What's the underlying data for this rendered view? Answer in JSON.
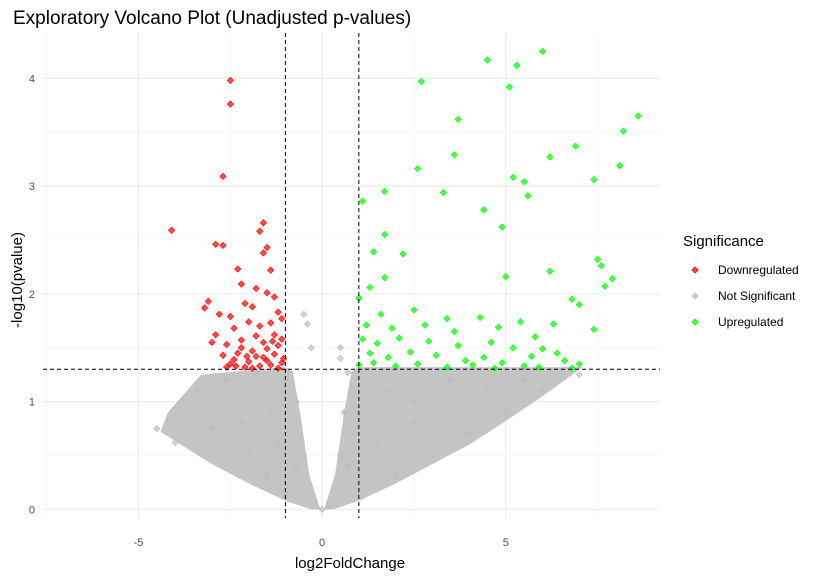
{
  "chart_data": {
    "type": "scatter",
    "title": "Exploratory Volcano Plot (Unadjusted p-values)",
    "xlabel": "log2FoldChange",
    "ylabel": "-log10(pvalue)",
    "xlim": [
      -7.6,
      9.2
    ],
    "ylim": [
      -0.08,
      4.42
    ],
    "xticks": [
      -5,
      0,
      5
    ],
    "yticks": [
      0,
      1,
      2,
      3,
      4
    ],
    "grid": true,
    "thresholds": {
      "log2fc": [
        -1,
        1
      ],
      "neg_log10_p": 1.3
    },
    "legend": {
      "title": "Significance",
      "position": "right",
      "entries": [
        {
          "name": "Downregulated",
          "color": "#ff0000"
        },
        {
          "name": "Not Significant",
          "color": "#bebebe"
        },
        {
          "name": "Upregulated",
          "color": "#00ff00"
        }
      ]
    },
    "series": [
      {
        "name": "Downregulated",
        "color": "#ff0000",
        "points": [
          [
            -2.5,
            3.98
          ],
          [
            -2.5,
            3.76
          ],
          [
            -2.7,
            3.09
          ],
          [
            -4.1,
            2.59
          ],
          [
            -2.9,
            2.46
          ],
          [
            -2.7,
            2.45
          ],
          [
            -1.6,
            2.66
          ],
          [
            -1.7,
            2.58
          ],
          [
            -1.5,
            2.43
          ],
          [
            -1.6,
            2.38
          ],
          [
            -1.4,
            2.22
          ],
          [
            -2.3,
            2.23
          ],
          [
            -2.2,
            2.09
          ],
          [
            -1.8,
            2.05
          ],
          [
            -1.5,
            2.01
          ],
          [
            -1.3,
            1.97
          ],
          [
            -3.1,
            1.93
          ],
          [
            -3.2,
            1.87
          ],
          [
            -2.8,
            1.81
          ],
          [
            -2.5,
            1.79
          ],
          [
            -2.1,
            1.91
          ],
          [
            -1.9,
            1.88
          ],
          [
            -1.2,
            1.83
          ],
          [
            -1.1,
            1.77
          ],
          [
            -1.4,
            1.73
          ],
          [
            -1.7,
            1.7
          ],
          [
            -2.0,
            1.74
          ],
          [
            -2.4,
            1.68
          ],
          [
            -2.9,
            1.62
          ],
          [
            -3.0,
            1.55
          ],
          [
            -2.6,
            1.53
          ],
          [
            -2.2,
            1.57
          ],
          [
            -1.8,
            1.61
          ],
          [
            -1.3,
            1.62
          ],
          [
            -1.1,
            1.58
          ],
          [
            -1.2,
            1.52
          ],
          [
            -1.5,
            1.49
          ],
          [
            -1.9,
            1.47
          ],
          [
            -2.3,
            1.45
          ],
          [
            -2.7,
            1.43
          ],
          [
            -2.4,
            1.39
          ],
          [
            -2.0,
            1.37
          ],
          [
            -1.6,
            1.41
          ],
          [
            -1.3,
            1.44
          ],
          [
            -1.1,
            1.36
          ],
          [
            -1.4,
            1.34
          ],
          [
            -1.7,
            1.33
          ],
          [
            -2.1,
            1.32
          ],
          [
            -2.5,
            1.35
          ],
          [
            -1.2,
            1.31
          ],
          [
            -1.5,
            1.38
          ],
          [
            -1.8,
            1.42
          ],
          [
            -2.2,
            1.5
          ],
          [
            -1.6,
            1.55
          ],
          [
            -1.9,
            1.31
          ],
          [
            -2.6,
            1.32
          ],
          [
            -1.05,
            1.4
          ],
          [
            -1.35,
            1.56
          ],
          [
            -2.35,
            1.33
          ],
          [
            -2.05,
            1.42
          ]
        ]
      },
      {
        "name": "Upregulated",
        "color": "#00ff00",
        "points": [
          [
            6.0,
            4.25
          ],
          [
            4.5,
            4.17
          ],
          [
            5.3,
            4.12
          ],
          [
            2.7,
            3.97
          ],
          [
            5.1,
            3.92
          ],
          [
            3.7,
            3.62
          ],
          [
            8.6,
            3.65
          ],
          [
            8.2,
            3.51
          ],
          [
            6.9,
            3.37
          ],
          [
            3.6,
            3.29
          ],
          [
            6.2,
            3.27
          ],
          [
            8.1,
            3.19
          ],
          [
            2.6,
            3.16
          ],
          [
            5.2,
            3.08
          ],
          [
            7.4,
            3.06
          ],
          [
            5.5,
            3.04
          ],
          [
            3.3,
            2.94
          ],
          [
            1.7,
            2.95
          ],
          [
            5.6,
            2.91
          ],
          [
            1.1,
            2.86
          ],
          [
            4.4,
            2.78
          ],
          [
            4.9,
            2.62
          ],
          [
            1.7,
            2.55
          ],
          [
            2.2,
            2.37
          ],
          [
            1.4,
            2.39
          ],
          [
            6.2,
            2.21
          ],
          [
            7.5,
            2.32
          ],
          [
            1.3,
            2.06
          ],
          [
            1.7,
            2.15
          ],
          [
            5.0,
            2.16
          ],
          [
            7.6,
            2.26
          ],
          [
            7.9,
            2.14
          ],
          [
            7.7,
            2.07
          ],
          [
            6.8,
            1.95
          ],
          [
            7.0,
            1.9
          ],
          [
            7.4,
            1.67
          ],
          [
            6.3,
            1.72
          ],
          [
            5.8,
            1.6
          ],
          [
            1.0,
            1.96
          ],
          [
            1.6,
            1.81
          ],
          [
            2.5,
            1.85
          ],
          [
            3.4,
            1.77
          ],
          [
            1.2,
            1.71
          ],
          [
            1.9,
            1.68
          ],
          [
            2.8,
            1.71
          ],
          [
            3.6,
            1.65
          ],
          [
            4.3,
            1.78
          ],
          [
            4.8,
            1.69
          ],
          [
            5.4,
            1.74
          ],
          [
            6.0,
            1.49
          ],
          [
            1.1,
            1.58
          ],
          [
            1.5,
            1.54
          ],
          [
            2.1,
            1.59
          ],
          [
            2.9,
            1.56
          ],
          [
            3.7,
            1.52
          ],
          [
            4.6,
            1.55
          ],
          [
            5.2,
            1.5
          ],
          [
            5.7,
            1.42
          ],
          [
            6.4,
            1.45
          ],
          [
            1.3,
            1.45
          ],
          [
            1.8,
            1.41
          ],
          [
            2.4,
            1.46
          ],
          [
            3.1,
            1.43
          ],
          [
            3.9,
            1.38
          ],
          [
            4.4,
            1.41
          ],
          [
            4.9,
            1.36
          ],
          [
            5.5,
            1.33
          ],
          [
            6.6,
            1.38
          ],
          [
            7.0,
            1.35
          ],
          [
            1.0,
            1.34
          ],
          [
            1.4,
            1.36
          ],
          [
            2.0,
            1.33
          ],
          [
            2.6,
            1.35
          ],
          [
            3.4,
            1.32
          ],
          [
            4.1,
            1.34
          ],
          [
            4.7,
            1.31
          ],
          [
            5.9,
            1.32
          ],
          [
            6.8,
            1.31
          ]
        ]
      },
      {
        "name": "Not Significant",
        "color": "#bebebe",
        "points": [
          [
            0.0,
            0.0
          ],
          [
            0.5,
            0.5
          ],
          [
            -0.5,
            0.5
          ],
          [
            -1.0,
            1.2
          ],
          [
            1.0,
            1.2
          ],
          [
            -4.5,
            0.75
          ],
          [
            -4.0,
            0.62
          ],
          [
            -3.0,
            0.75
          ],
          [
            -2.0,
            0.5
          ],
          [
            -1.5,
            0.3
          ],
          [
            -1.0,
            0.15
          ],
          [
            1.0,
            0.15
          ],
          [
            2.0,
            0.3
          ],
          [
            3.0,
            0.5
          ],
          [
            4.0,
            0.7
          ],
          [
            5.0,
            0.9
          ],
          [
            6.0,
            1.1
          ],
          [
            7.0,
            1.25
          ],
          [
            -0.4,
            1.72
          ],
          [
            -0.5,
            1.81
          ],
          [
            -0.3,
            1.5
          ],
          [
            0.5,
            1.5
          ],
          [
            0.5,
            1.4
          ],
          [
            0.7,
            1.27
          ],
          [
            -3.4,
            1.1
          ],
          [
            -2.6,
            1.2
          ],
          [
            -1.8,
            1.26
          ],
          [
            2.5,
            1.0
          ],
          [
            3.5,
            1.2
          ],
          [
            4.5,
            1.1
          ],
          [
            5.5,
            1.2
          ],
          [
            6.5,
            1.26
          ],
          [
            -2.2,
            0.8
          ],
          [
            -1.2,
            0.6
          ],
          [
            -0.7,
            0.4
          ],
          [
            0.7,
            0.4
          ],
          [
            1.5,
            0.6
          ],
          [
            2.5,
            0.8
          ],
          [
            -0.7,
            1.0
          ],
          [
            0.6,
            0.9
          ],
          [
            -1.4,
            0.9
          ],
          [
            1.8,
            1.1
          ]
        ]
      }
    ]
  }
}
